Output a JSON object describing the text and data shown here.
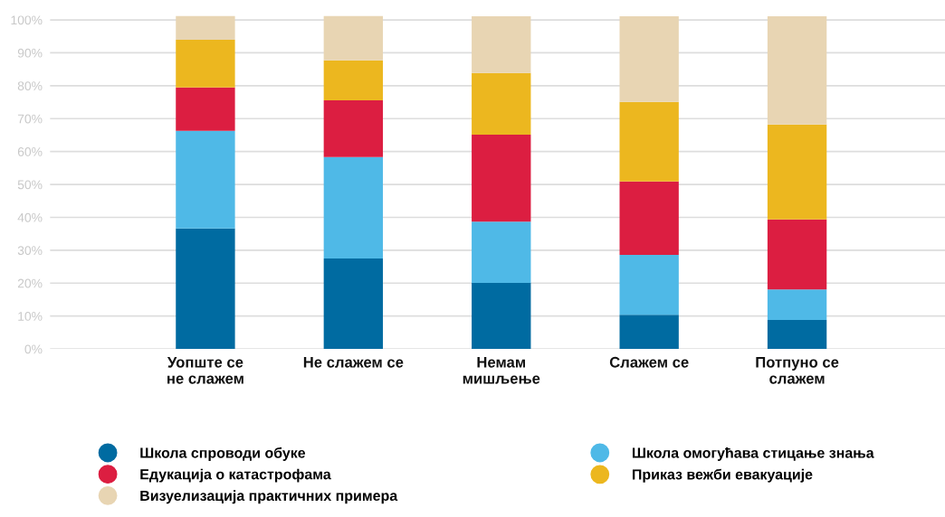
{
  "chart_data": {
    "type": "bar",
    "stacked": true,
    "categories": [
      "Уопште се\nне слажем",
      "Не слажем се",
      "Немам\nмишљење",
      "Слажем се",
      "Потпуно се\nслажем"
    ],
    "series": [
      {
        "name": "Школа спроводи обуке",
        "color": "#006ba1",
        "values": [
          36.6,
          27.5,
          20.1,
          10.4,
          8.8
        ]
      },
      {
        "name": "Школа омогућава стицање знања",
        "color": "#4fb9e7",
        "values": [
          29.7,
          30.8,
          18.6,
          18.2,
          9.3
        ]
      },
      {
        "name": "Едукација о катастрофама",
        "color": "#dc1e41",
        "values": [
          13.2,
          17.3,
          26.4,
          22.3,
          21.3
        ]
      },
      {
        "name": "Приказ вежби евакуације",
        "color": "#ecb71f",
        "values": [
          14.5,
          12.1,
          18.8,
          24.2,
          28.8
        ]
      },
      {
        "name": "Визуелизација практичних примера",
        "color": "#e8d5b3",
        "values": [
          7.2,
          13.5,
          17.2,
          26.0,
          32.9
        ]
      }
    ],
    "ylim": [
      0,
      101.5
    ],
    "yticks": [
      {
        "value": 0,
        "label": "0%"
      },
      {
        "value": 10,
        "label": "10%"
      },
      {
        "value": 20,
        "label": "20%"
      },
      {
        "value": 30,
        "label": "30%"
      },
      {
        "value": 40,
        "label": "40%"
      },
      {
        "value": 50,
        "label": "50%"
      },
      {
        "value": 60,
        "label": "60%"
      },
      {
        "value": 70,
        "label": "70%"
      },
      {
        "value": 80,
        "label": "80%"
      },
      {
        "value": 90,
        "label": "90%"
      },
      {
        "value": 100,
        "label": "100%"
      }
    ],
    "grid": "y",
    "legend": "bottom",
    "marker": "circle"
  }
}
